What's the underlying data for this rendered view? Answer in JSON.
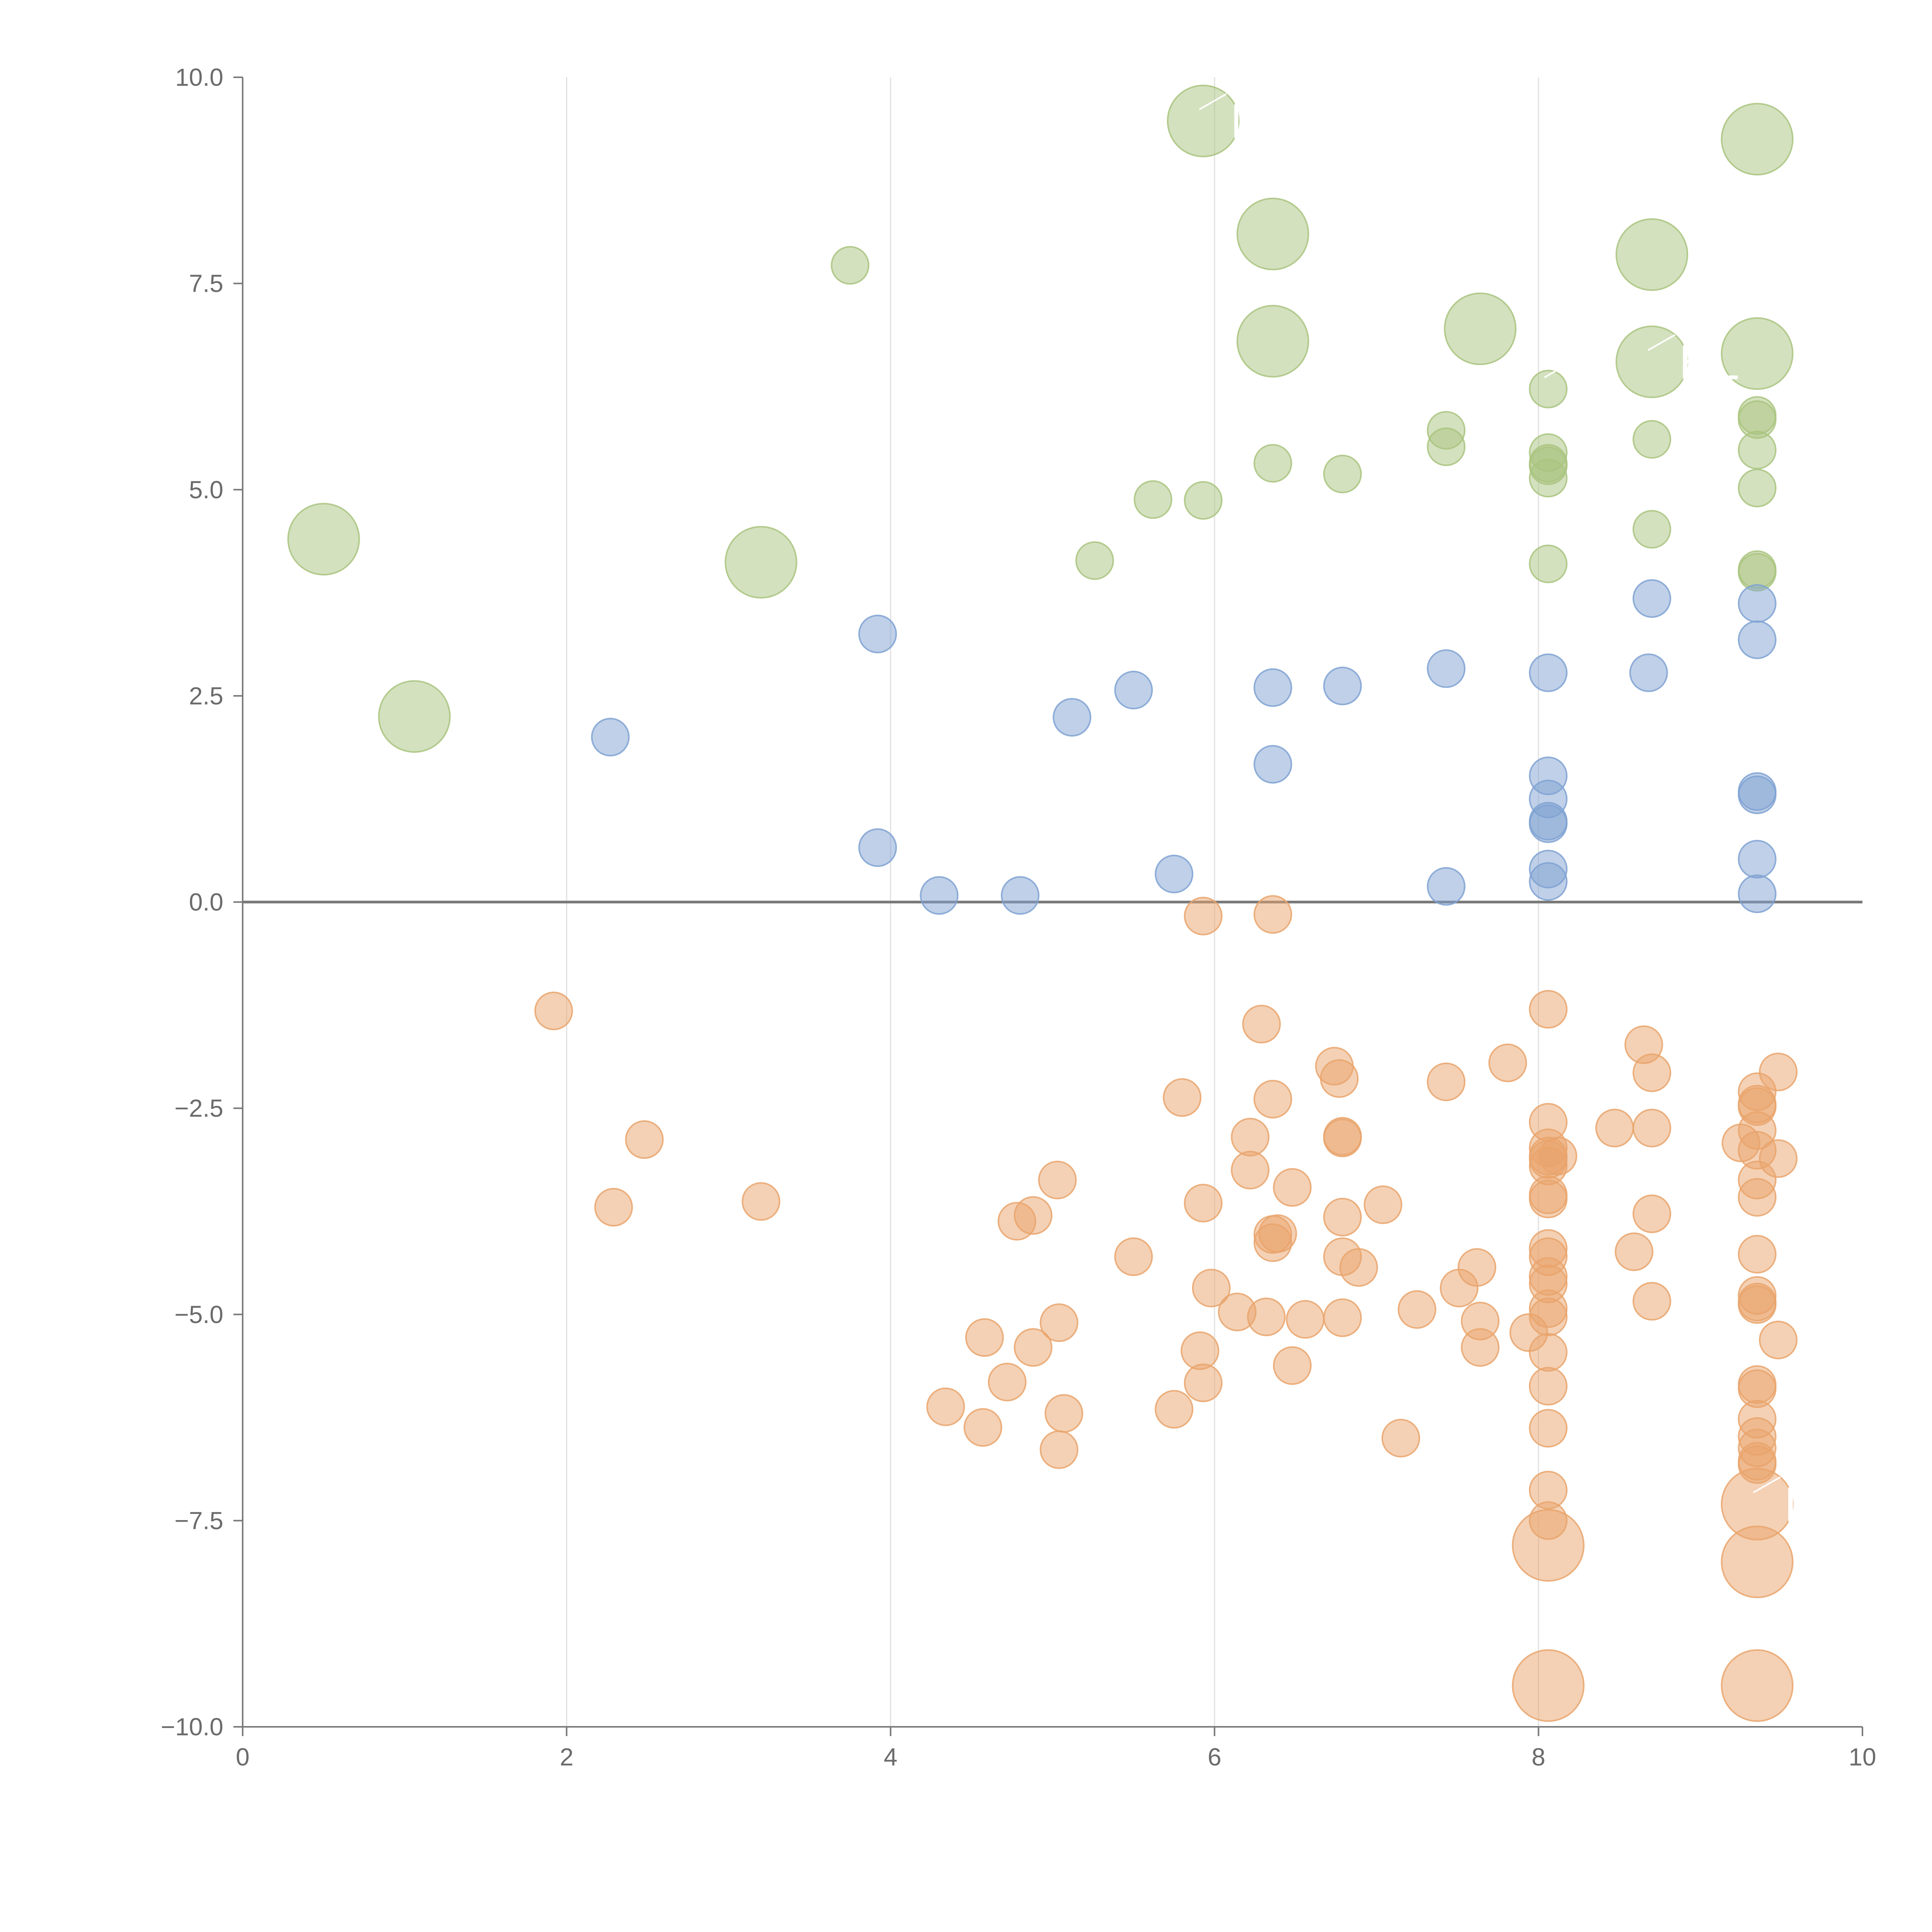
{
  "chart_data": {
    "type": "scatter",
    "title": "",
    "xlabel": "",
    "ylabel": "",
    "xlim": [
      0,
      10
    ],
    "ylim": [
      -10,
      10
    ],
    "grid": "vertical",
    "zero_line": true,
    "x_ticks": [
      {
        "value": 0,
        "label": "0"
      },
      {
        "value": 2,
        "label": "2"
      },
      {
        "value": 4,
        "label": "4"
      },
      {
        "value": 6,
        "label": "6"
      },
      {
        "value": 8,
        "label": "8"
      },
      {
        "value": 10,
        "label": "10"
      }
    ],
    "y_ticks": [
      {
        "value": 10,
        "label": "10.0"
      },
      {
        "value": 7.5,
        "label": "7.5"
      },
      {
        "value": 5,
        "label": "5.0"
      },
      {
        "value": 2.5,
        "label": "2.5"
      },
      {
        "value": 0,
        "label": "0.0"
      },
      {
        "value": -2.5,
        "label": "−2.5"
      },
      {
        "value": -5,
        "label": "−5.0"
      },
      {
        "value": -7.5,
        "label": "−7.5"
      },
      {
        "value": -10,
        "label": "−10.0"
      }
    ],
    "series": [
      {
        "color": "#a9c47f",
        "points": [
          [
            0.5,
            4.4,
            2
          ],
          [
            1.06,
            2.25,
            2
          ],
          [
            3.2,
            4.12,
            2
          ],
          [
            5.93,
            9.47,
            2
          ],
          [
            6.36,
            8.1,
            2
          ],
          [
            6.36,
            6.8,
            2
          ],
          [
            7.64,
            6.95,
            2
          ],
          [
            8.7,
            7.85,
            2
          ],
          [
            8.7,
            6.55,
            2
          ],
          [
            9.35,
            9.25,
            2
          ],
          [
            9.35,
            6.65,
            2
          ],
          [
            3.75,
            7.72,
            1
          ],
          [
            5.26,
            4.14,
            1
          ],
          [
            5.62,
            4.88,
            1
          ],
          [
            5.93,
            4.87,
            1
          ],
          [
            6.36,
            5.32,
            1
          ],
          [
            6.79,
            5.19,
            1
          ],
          [
            7.43,
            5.72,
            1
          ],
          [
            7.43,
            5.52,
            1
          ],
          [
            8.06,
            6.22,
            1
          ],
          [
            8.06,
            5.45,
            1
          ],
          [
            8.06,
            5.32,
            1
          ],
          [
            8.06,
            5.29,
            1
          ],
          [
            8.06,
            5.14,
            1
          ],
          [
            8.06,
            4.1,
            1
          ],
          [
            8.7,
            5.61,
            1
          ],
          [
            8.7,
            4.52,
            1
          ],
          [
            9.35,
            5.9,
            1
          ],
          [
            9.35,
            5.85,
            1
          ],
          [
            9.35,
            5.48,
            1
          ],
          [
            9.35,
            5.02,
            1
          ],
          [
            9.35,
            4.03,
            1
          ],
          [
            9.35,
            4.0,
            1
          ]
        ]
      },
      {
        "color": "#7fa2d2",
        "points": [
          [
            2.27,
            2.0,
            1
          ],
          [
            3.92,
            3.25,
            1
          ],
          [
            3.92,
            0.66,
            1
          ],
          [
            4.3,
            0.08,
            1
          ],
          [
            4.8,
            0.08,
            1
          ],
          [
            5.12,
            2.24,
            1
          ],
          [
            5.5,
            2.57,
            1
          ],
          [
            5.75,
            0.34,
            1
          ],
          [
            6.36,
            2.6,
            1
          ],
          [
            6.36,
            1.67,
            1
          ],
          [
            6.79,
            2.62,
            1
          ],
          [
            7.43,
            2.83,
            1
          ],
          [
            7.43,
            0.19,
            1
          ],
          [
            8.06,
            2.78,
            1
          ],
          [
            8.06,
            1.53,
            1
          ],
          [
            8.06,
            1.25,
            1
          ],
          [
            8.06,
            0.98,
            1
          ],
          [
            8.06,
            0.95,
            1
          ],
          [
            8.06,
            0.4,
            1
          ],
          [
            8.06,
            0.25,
            1
          ],
          [
            8.68,
            2.78,
            1
          ],
          [
            8.7,
            3.68,
            1
          ],
          [
            9.35,
            3.62,
            1
          ],
          [
            9.35,
            3.18,
            1
          ],
          [
            9.35,
            1.34,
            1
          ],
          [
            9.35,
            1.3,
            1
          ],
          [
            9.35,
            0.52,
            1
          ],
          [
            9.35,
            0.1,
            1
          ]
        ]
      },
      {
        "color": "#e9a46c",
        "points": [
          [
            8.06,
            -7.8,
            2
          ],
          [
            8.06,
            -9.5,
            2
          ],
          [
            9.35,
            -7.3,
            2
          ],
          [
            9.35,
            -8.0,
            2
          ],
          [
            9.35,
            -9.5,
            2
          ],
          [
            1.92,
            -1.32,
            1
          ],
          [
            2.29,
            -3.7,
            1
          ],
          [
            2.48,
            -2.88,
            1
          ],
          [
            3.2,
            -3.63,
            1
          ],
          [
            4.34,
            -6.12,
            1
          ],
          [
            4.57,
            -6.37,
            1
          ],
          [
            4.58,
            -5.28,
            1
          ],
          [
            4.72,
            -5.82,
            1
          ],
          [
            4.78,
            -3.87,
            1
          ],
          [
            4.88,
            -3.8,
            1
          ],
          [
            4.88,
            -5.4,
            1
          ],
          [
            5.03,
            -3.37,
            1
          ],
          [
            5.04,
            -5.1,
            1
          ],
          [
            5.04,
            -6.64,
            1
          ],
          [
            5.07,
            -6.2,
            1
          ],
          [
            5.5,
            -4.3,
            1
          ],
          [
            5.75,
            -6.15,
            1
          ],
          [
            5.8,
            -2.37,
            1
          ],
          [
            5.91,
            -5.44,
            1
          ],
          [
            5.93,
            -3.65,
            1
          ],
          [
            5.93,
            -5.83,
            1
          ],
          [
            5.93,
            -0.17,
            1
          ],
          [
            5.98,
            -4.68,
            1
          ],
          [
            6.14,
            -4.97,
            1
          ],
          [
            6.22,
            -2.85,
            1
          ],
          [
            6.22,
            -3.25,
            1
          ],
          [
            6.29,
            -1.48,
            1
          ],
          [
            6.32,
            -5.03,
            1
          ],
          [
            6.36,
            -0.15,
            1
          ],
          [
            6.36,
            -2.39,
            1
          ],
          [
            6.36,
            -4.03,
            1
          ],
          [
            6.36,
            -4.13,
            1
          ],
          [
            6.39,
            -4.02,
            1
          ],
          [
            6.48,
            -3.46,
            1
          ],
          [
            6.48,
            -5.62,
            1
          ],
          [
            6.56,
            -5.06,
            1
          ],
          [
            6.74,
            -1.99,
            1
          ],
          [
            6.77,
            -2.14,
            1
          ],
          [
            6.79,
            -2.86,
            1
          ],
          [
            6.79,
            -2.84,
            1
          ],
          [
            6.79,
            -3.82,
            1
          ],
          [
            6.79,
            -4.3,
            1
          ],
          [
            6.79,
            -5.04,
            1
          ],
          [
            6.89,
            -4.43,
            1
          ],
          [
            7.04,
            -3.67,
            1
          ],
          [
            7.15,
            -6.5,
            1
          ],
          [
            7.25,
            -4.94,
            1
          ],
          [
            7.43,
            -2.18,
            1
          ],
          [
            7.51,
            -4.68,
            1
          ],
          [
            7.62,
            -4.43,
            1
          ],
          [
            7.64,
            -5.08,
            1
          ],
          [
            7.64,
            -5.4,
            1
          ],
          [
            7.81,
            -1.95,
            1
          ],
          [
            7.94,
            -5.22,
            1
          ],
          [
            8.06,
            -1.3,
            1
          ],
          [
            8.06,
            -2.67,
            1
          ],
          [
            8.06,
            -2.98,
            1
          ],
          [
            8.06,
            -3.08,
            1
          ],
          [
            8.06,
            -3.12,
            1
          ],
          [
            8.06,
            -3.2,
            1
          ],
          [
            8.06,
            -3.55,
            1
          ],
          [
            8.06,
            -3.6,
            1
          ],
          [
            8.06,
            -4.2,
            1
          ],
          [
            8.06,
            -4.3,
            1
          ],
          [
            8.06,
            -4.54,
            1
          ],
          [
            8.06,
            -4.63,
            1
          ],
          [
            8.06,
            -4.93,
            1
          ],
          [
            8.06,
            -5.03,
            1
          ],
          [
            8.06,
            -5.46,
            1
          ],
          [
            8.06,
            -5.87,
            1
          ],
          [
            8.06,
            -6.38,
            1
          ],
          [
            8.06,
            -7.13,
            1
          ],
          [
            8.06,
            -7.5,
            1
          ],
          [
            8.12,
            -3.08,
            1
          ],
          [
            8.47,
            -2.74,
            1
          ],
          [
            8.59,
            -4.24,
            1
          ],
          [
            8.65,
            -1.73,
            1
          ],
          [
            8.7,
            -2.07,
            1
          ],
          [
            8.7,
            -2.74,
            1
          ],
          [
            8.7,
            -3.78,
            1
          ],
          [
            8.7,
            -4.84,
            1
          ],
          [
            9.25,
            -2.92,
            1
          ],
          [
            9.35,
            -2.3,
            1
          ],
          [
            9.35,
            -2.45,
            1
          ],
          [
            9.35,
            -2.48,
            1
          ],
          [
            9.35,
            -2.77,
            1
          ],
          [
            9.35,
            -3.01,
            1
          ],
          [
            9.35,
            -3.37,
            1
          ],
          [
            9.35,
            -3.58,
            1
          ],
          [
            9.35,
            -4.27,
            1
          ],
          [
            9.35,
            -4.77,
            1
          ],
          [
            9.35,
            -4.85,
            1
          ],
          [
            9.35,
            -4.88,
            1
          ],
          [
            9.35,
            -5.85,
            1
          ],
          [
            9.35,
            -5.9,
            1
          ],
          [
            9.35,
            -6.27,
            1
          ],
          [
            9.35,
            -6.48,
            1
          ],
          [
            9.35,
            -6.62,
            1
          ],
          [
            9.35,
            -6.78,
            1
          ],
          [
            9.35,
            -6.82,
            1
          ],
          [
            9.48,
            -2.06,
            1
          ],
          [
            9.48,
            -3.11,
            1
          ],
          [
            9.48,
            -5.31,
            1
          ]
        ]
      }
    ],
    "labels": [
      {
        "text": "MX",
        "x": 5.93,
        "y": 9.47
      },
      {
        "text": "S",
        "x": 8.06,
        "y": 6.22
      },
      {
        "text": "EL",
        "x": 8.7,
        "y": 6.55
      },
      {
        "text": "LV",
        "x": 9.35,
        "y": -7.3
      }
    ]
  }
}
